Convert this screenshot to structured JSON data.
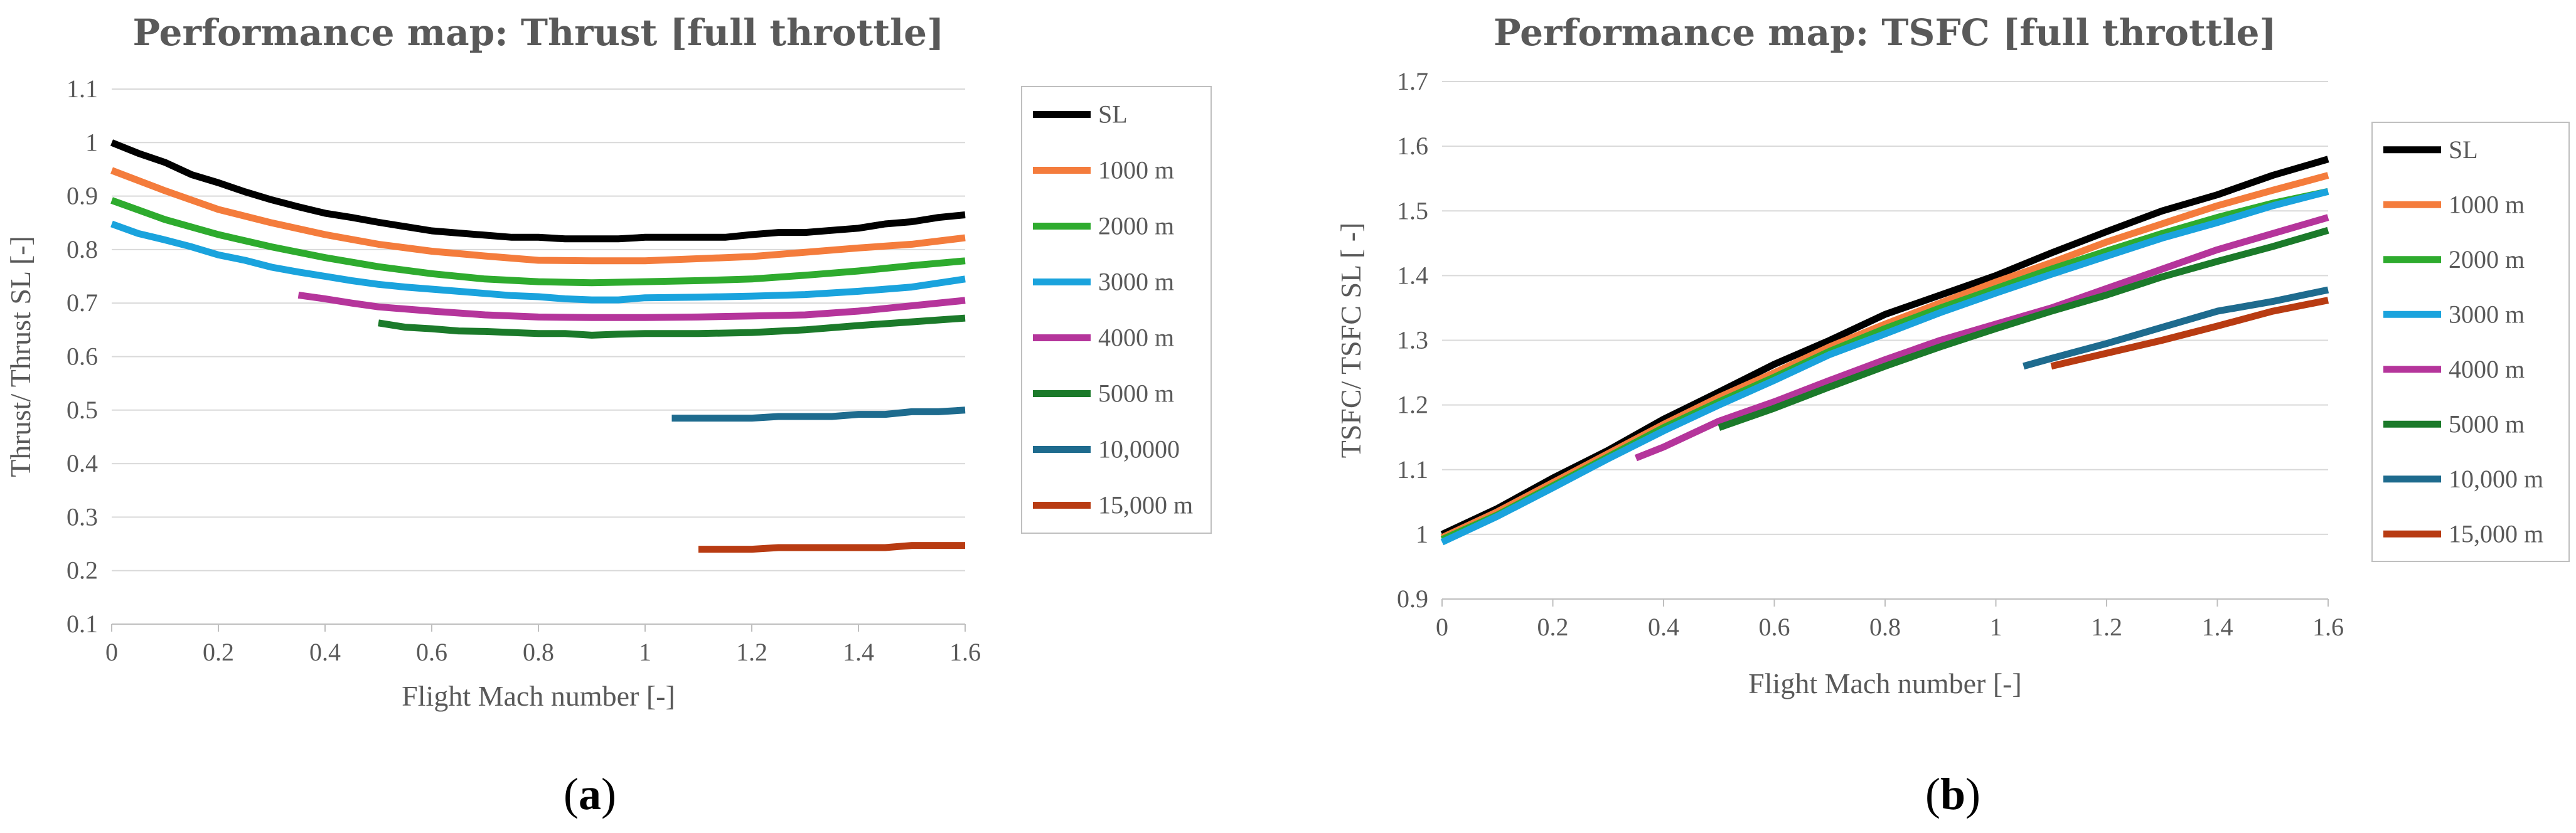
{
  "chart_data": [
    {
      "type": "line",
      "title": "Performance map: Thrust [full throttle]",
      "xlabel": "Flight Mach number [-]",
      "ylabel": "Thrust/ Thrust SL [-]",
      "caption_letter": "a",
      "xlim": [
        0,
        1.6
      ],
      "ylim": [
        0.1,
        1.1
      ],
      "xticks": [
        "0",
        "0.2",
        "0.4",
        "0.6",
        "0.8",
        "1",
        "1.2",
        "1.4",
        "1.6"
      ],
      "yticks": [
        "0.1",
        "0.2",
        "0.3",
        "0.4",
        "0.5",
        "0.6",
        "0.7",
        "0.8",
        "0.9",
        "1",
        "1.1"
      ],
      "grid": true,
      "legend_position": "right",
      "series": [
        {
          "name": "SL",
          "color": "#000000",
          "x": [
            0,
            0.05,
            0.1,
            0.15,
            0.2,
            0.25,
            0.3,
            0.35,
            0.4,
            0.45,
            0.5,
            0.55,
            0.6,
            0.65,
            0.7,
            0.75,
            0.8,
            0.85,
            0.9,
            0.95,
            1.0,
            1.05,
            1.1,
            1.15,
            1.2,
            1.25,
            1.3,
            1.35,
            1.4,
            1.45,
            1.5,
            1.55,
            1.6
          ],
          "y": [
            1.0,
            0.98,
            0.963,
            0.94,
            0.925,
            0.908,
            0.893,
            0.88,
            0.868,
            0.86,
            0.851,
            0.843,
            0.835,
            0.831,
            0.827,
            0.823,
            0.823,
            0.82,
            0.82,
            0.82,
            0.823,
            0.823,
            0.823,
            0.823,
            0.828,
            0.832,
            0.832,
            0.836,
            0.84,
            0.848,
            0.852,
            0.86,
            0.865
          ]
        },
        {
          "name": "1000 m",
          "color": "#f47c3c",
          "x": [
            0,
            0.1,
            0.2,
            0.3,
            0.4,
            0.5,
            0.6,
            0.7,
            0.8,
            0.9,
            1.0,
            1.1,
            1.2,
            1.3,
            1.4,
            1.5,
            1.6
          ],
          "y": [
            0.948,
            0.91,
            0.875,
            0.85,
            0.828,
            0.81,
            0.797,
            0.788,
            0.78,
            0.779,
            0.779,
            0.783,
            0.787,
            0.795,
            0.803,
            0.81,
            0.822
          ]
        },
        {
          "name": "2000 m",
          "color": "#2eab2e",
          "x": [
            0,
            0.1,
            0.2,
            0.3,
            0.4,
            0.5,
            0.6,
            0.7,
            0.8,
            0.9,
            1.0,
            1.1,
            1.2,
            1.3,
            1.4,
            1.5,
            1.6
          ],
          "y": [
            0.892,
            0.856,
            0.828,
            0.805,
            0.785,
            0.768,
            0.755,
            0.745,
            0.74,
            0.738,
            0.74,
            0.742,
            0.745,
            0.752,
            0.76,
            0.77,
            0.779
          ]
        },
        {
          "name": "3000 m",
          "color": "#1aa3dd",
          "x": [
            0,
            0.05,
            0.1,
            0.15,
            0.2,
            0.25,
            0.3,
            0.35,
            0.4,
            0.45,
            0.5,
            0.55,
            0.6,
            0.65,
            0.7,
            0.75,
            0.8,
            0.85,
            0.9,
            0.95,
            1.0,
            1.1,
            1.2,
            1.3,
            1.4,
            1.5,
            1.6
          ],
          "y": [
            0.848,
            0.83,
            0.818,
            0.805,
            0.79,
            0.78,
            0.767,
            0.758,
            0.75,
            0.742,
            0.735,
            0.73,
            0.726,
            0.722,
            0.718,
            0.714,
            0.712,
            0.708,
            0.706,
            0.706,
            0.71,
            0.711,
            0.713,
            0.716,
            0.722,
            0.73,
            0.745
          ]
        },
        {
          "name": "4000 m",
          "color": "#b5359b",
          "x": [
            0.35,
            0.4,
            0.45,
            0.5,
            0.6,
            0.7,
            0.8,
            0.9,
            1.0,
            1.1,
            1.2,
            1.3,
            1.4,
            1.5,
            1.6
          ],
          "y": [
            0.715,
            0.708,
            0.7,
            0.693,
            0.685,
            0.678,
            0.674,
            0.673,
            0.673,
            0.674,
            0.676,
            0.678,
            0.685,
            0.695,
            0.705
          ]
        },
        {
          "name": "5000 m",
          "color": "#1b7a2a",
          "x": [
            0.5,
            0.55,
            0.6,
            0.65,
            0.7,
            0.75,
            0.8,
            0.85,
            0.9,
            0.95,
            1.0,
            1.1,
            1.2,
            1.3,
            1.4,
            1.5,
            1.6
          ],
          "y": [
            0.663,
            0.655,
            0.652,
            0.648,
            0.647,
            0.645,
            0.643,
            0.643,
            0.64,
            0.642,
            0.643,
            0.643,
            0.645,
            0.65,
            0.658,
            0.665,
            0.672
          ]
        },
        {
          "name": "10,0000",
          "color": "#1e6b8e",
          "x": [
            1.05,
            1.1,
            1.2,
            1.25,
            1.3,
            1.35,
            1.4,
            1.45,
            1.5,
            1.55,
            1.6
          ],
          "y": [
            0.485,
            0.485,
            0.485,
            0.488,
            0.488,
            0.488,
            0.492,
            0.492,
            0.497,
            0.497,
            0.5
          ]
        },
        {
          "name": "15,000 m",
          "color": "#b83b12",
          "x": [
            1.1,
            1.15,
            1.2,
            1.25,
            1.3,
            1.35,
            1.4,
            1.45,
            1.5,
            1.55,
            1.6
          ],
          "y": [
            0.24,
            0.24,
            0.24,
            0.243,
            0.243,
            0.243,
            0.243,
            0.243,
            0.247,
            0.247,
            0.247
          ]
        }
      ]
    },
    {
      "type": "line",
      "title": "Performance map: TSFC [full throttle]",
      "xlabel": "Flight Mach number [-]",
      "ylabel": "TSFC/ TSFC SL [ -]",
      "caption_letter": "b",
      "xlim": [
        0,
        1.6
      ],
      "ylim": [
        0.9,
        1.7
      ],
      "xticks": [
        "0",
        "0.2",
        "0.4",
        "0.6",
        "0.8",
        "1",
        "1.2",
        "1.4",
        "1.6"
      ],
      "yticks": [
        "0.9",
        "1",
        "1.1",
        "1.2",
        "1.3",
        "1.4",
        "1.5",
        "1.6",
        "1.7"
      ],
      "grid": true,
      "legend_position": "right",
      "series": [
        {
          "name": "SL",
          "color": "#000000",
          "x": [
            0,
            0.1,
            0.2,
            0.3,
            0.4,
            0.5,
            0.6,
            0.7,
            0.8,
            0.9,
            1.0,
            1.1,
            1.2,
            1.3,
            1.4,
            1.5,
            1.6
          ],
          "y": [
            1.0,
            1.04,
            1.087,
            1.13,
            1.178,
            1.22,
            1.263,
            1.3,
            1.34,
            1.37,
            1.4,
            1.435,
            1.468,
            1.5,
            1.525,
            1.555,
            1.58
          ]
        },
        {
          "name": "1000 m",
          "color": "#f47c3c",
          "x": [
            0,
            0.1,
            0.2,
            0.3,
            0.4,
            0.5,
            0.6,
            0.7,
            0.8,
            0.9,
            1.0,
            1.1,
            1.2,
            1.3,
            1.4,
            1.5,
            1.6
          ],
          "y": [
            0.995,
            1.035,
            1.08,
            1.125,
            1.17,
            1.212,
            1.25,
            1.29,
            1.325,
            1.358,
            1.39,
            1.42,
            1.452,
            1.48,
            1.508,
            1.532,
            1.555
          ]
        },
        {
          "name": "2000 m",
          "color": "#2eab2e",
          "x": [
            0,
            0.1,
            0.2,
            0.3,
            0.4,
            0.5,
            0.6,
            0.7,
            0.8,
            0.9,
            1.0,
            1.1,
            1.2,
            1.3,
            1.4,
            1.5,
            1.6
          ],
          "y": [
            0.992,
            1.03,
            1.075,
            1.12,
            1.165,
            1.205,
            1.243,
            1.283,
            1.318,
            1.35,
            1.38,
            1.41,
            1.438,
            1.465,
            1.49,
            1.512,
            1.53
          ]
        },
        {
          "name": "3000 m",
          "color": "#1aa3dd",
          "x": [
            0,
            0.1,
            0.2,
            0.3,
            0.4,
            0.5,
            0.6,
            0.7,
            0.8,
            0.9,
            1.0,
            1.1,
            1.2,
            1.3,
            1.4,
            1.5,
            1.6
          ],
          "y": [
            0.988,
            1.028,
            1.072,
            1.117,
            1.16,
            1.2,
            1.238,
            1.278,
            1.31,
            1.343,
            1.373,
            1.402,
            1.43,
            1.458,
            1.482,
            1.508,
            1.53
          ]
        },
        {
          "name": "4000 m",
          "color": "#b5359b",
          "x": [
            0.35,
            0.4,
            0.45,
            0.5,
            0.6,
            0.7,
            0.8,
            0.9,
            1.0,
            1.1,
            1.2,
            1.3,
            1.4,
            1.5,
            1.6
          ],
          "y": [
            1.118,
            1.135,
            1.155,
            1.175,
            1.205,
            1.238,
            1.27,
            1.3,
            1.325,
            1.35,
            1.38,
            1.41,
            1.44,
            1.465,
            1.49
          ]
        },
        {
          "name": "5000 m",
          "color": "#1b7a2a",
          "x": [
            0.5,
            0.6,
            0.7,
            0.8,
            0.9,
            1.0,
            1.1,
            1.2,
            1.3,
            1.4,
            1.5,
            1.6
          ],
          "y": [
            1.165,
            1.195,
            1.228,
            1.26,
            1.29,
            1.318,
            1.345,
            1.37,
            1.398,
            1.422,
            1.445,
            1.47
          ]
        },
        {
          "name": "10,000 m",
          "color": "#1e6b8e",
          "x": [
            1.05,
            1.1,
            1.2,
            1.3,
            1.4,
            1.5,
            1.6
          ],
          "y": [
            1.26,
            1.272,
            1.295,
            1.32,
            1.345,
            1.36,
            1.378
          ]
        },
        {
          "name": "15,000 m",
          "color": "#b83b12",
          "x": [
            1.1,
            1.2,
            1.3,
            1.4,
            1.5,
            1.6
          ],
          "y": [
            1.26,
            1.28,
            1.3,
            1.322,
            1.345,
            1.362
          ]
        }
      ]
    }
  ]
}
